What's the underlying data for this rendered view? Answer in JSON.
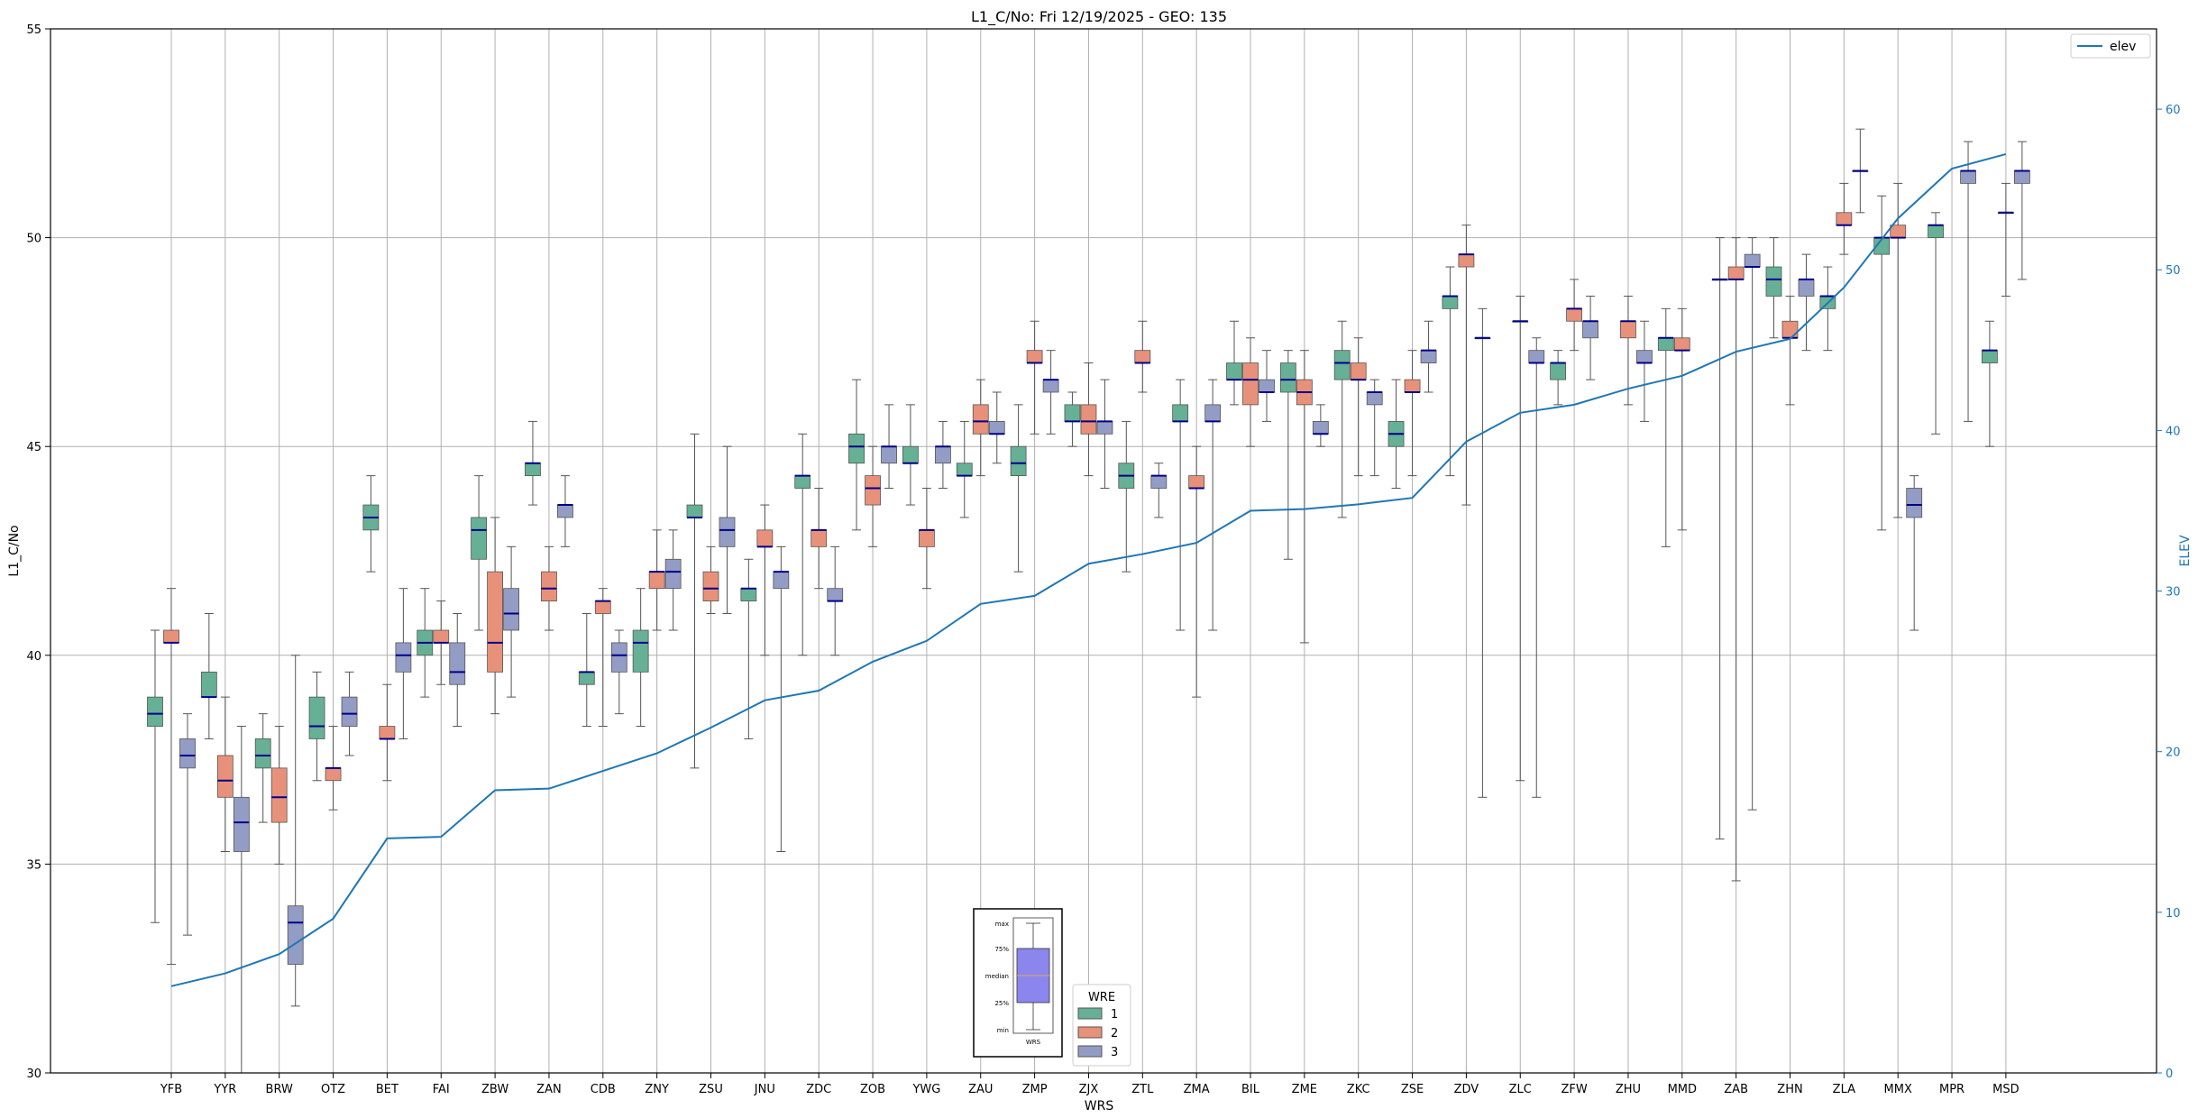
{
  "chart_data": {
    "type": "boxplot",
    "title": "L1_C/No: Fri 12/19/2025 - GEO: 135",
    "xlabel": "WRS",
    "ylabel": "L1_C/No",
    "ylabel_right": "ELEV",
    "ylim": [
      30,
      55
    ],
    "ylim_right": [
      0,
      65
    ],
    "yticks": [
      "30",
      "35",
      "40",
      "45",
      "50",
      "55"
    ],
    "yticks_right": [
      "0",
      "10",
      "20",
      "30",
      "40",
      "50",
      "60"
    ],
    "grid": true,
    "categories": [
      "YFB",
      "YYR",
      "BRW",
      "OTZ",
      "BET",
      "FAI",
      "ZBW",
      "ZAN",
      "CDB",
      "ZNY",
      "ZSU",
      "JNU",
      "ZDC",
      "ZOB",
      "YWG",
      "ZAU",
      "ZMP",
      "ZJX",
      "ZTL",
      "ZMA",
      "BIL",
      "ZME",
      "ZKC",
      "ZSE",
      "ZDV",
      "ZLC",
      "ZFW",
      "ZHU",
      "MMD",
      "ZAB",
      "ZHN",
      "ZLA",
      "MMX",
      "MPR",
      "MSD"
    ],
    "legend": {
      "title": "WRE",
      "entries": [
        {
          "label": "1",
          "color": "#66b096"
        },
        {
          "label": "2",
          "color": "#e8917a"
        },
        {
          "label": "3",
          "color": "#939cc4"
        }
      ]
    },
    "line_legend": {
      "label": "elev",
      "color": "#1f77b4"
    },
    "colors": {
      "wre1": "#66b096",
      "wre2": "#e8917a",
      "wre3": "#939cc4",
      "median": "#00008b",
      "elev": "#1f77b4",
      "grid": "#b0b0b0",
      "whisker": "#555555"
    },
    "key_inset": {
      "labels": [
        "max",
        "75%",
        "median",
        "25%",
        "min"
      ],
      "xlabel": "WRS"
    },
    "elev": [
      5.4,
      6.2,
      7.4,
      9.6,
      14.6,
      14.7,
      17.6,
      17.7,
      18.8,
      19.9,
      21.5,
      23.2,
      23.8,
      25.6,
      26.9,
      29.2,
      29.7,
      31.7,
      32.3,
      33.0,
      35.0,
      35.1,
      35.4,
      35.8,
      39.3,
      41.1,
      41.6,
      42.6,
      43.4,
      44.9,
      45.7,
      48.9,
      53.2,
      56.3,
      57.2
    ],
    "series": [
      {
        "name": "1",
        "boxes": [
          [
            33.6,
            38.3,
            38.6,
            39.0,
            40.6
          ],
          [
            38.0,
            39.0,
            39.0,
            39.6,
            41.0
          ],
          [
            36.0,
            37.3,
            37.6,
            38.0,
            38.6
          ],
          [
            37.0,
            38.0,
            38.3,
            39.0,
            39.6
          ],
          [
            42.0,
            43.0,
            43.3,
            43.6,
            44.3
          ],
          [
            39.0,
            40.0,
            40.3,
            40.6,
            41.6
          ],
          [
            40.6,
            42.3,
            43.0,
            43.3,
            44.3
          ],
          [
            43.6,
            44.3,
            44.6,
            44.6,
            45.6
          ],
          [
            38.3,
            39.3,
            39.6,
            39.6,
            41.0
          ],
          [
            38.3,
            39.6,
            40.3,
            40.6,
            41.6
          ],
          [
            37.3,
            43.3,
            43.3,
            43.6,
            45.3
          ],
          [
            38.0,
            41.3,
            41.6,
            41.6,
            42.3
          ],
          [
            40.0,
            44.0,
            44.3,
            44.3,
            45.3
          ],
          [
            43.0,
            44.6,
            45.0,
            45.3,
            46.6
          ],
          [
            43.6,
            44.6,
            44.6,
            45.0,
            46.0
          ],
          [
            43.3,
            44.3,
            44.3,
            44.6,
            45.6
          ],
          [
            42.0,
            44.3,
            44.6,
            45.0,
            46.0
          ],
          [
            45.0,
            45.6,
            45.6,
            46.0,
            46.3
          ],
          [
            42.0,
            44.0,
            44.3,
            44.6,
            45.6
          ],
          [
            40.6,
            45.6,
            45.6,
            46.0,
            46.6
          ],
          [
            46.0,
            46.6,
            46.6,
            47.0,
            48.0
          ],
          [
            42.3,
            46.3,
            46.6,
            47.0,
            47.3
          ],
          [
            43.3,
            46.6,
            47.0,
            47.3,
            48.0
          ],
          [
            44.0,
            45.0,
            45.3,
            45.6,
            46.6
          ],
          [
            44.3,
            48.3,
            48.6,
            48.6,
            49.3
          ],
          null,
          [
            46.0,
            46.6,
            47.0,
            47.0,
            47.3
          ],
          null,
          [
            42.6,
            47.3,
            47.6,
            47.6,
            48.3
          ],
          [
            35.6,
            49.0,
            49.0,
            49.0,
            50.0
          ],
          [
            47.6,
            48.6,
            49.0,
            49.3,
            50.0
          ],
          [
            47.3,
            48.3,
            48.6,
            48.6,
            49.3
          ],
          [
            43.0,
            49.6,
            50.0,
            50.0,
            51.0
          ],
          [
            45.3,
            50.0,
            50.3,
            50.3,
            50.6
          ],
          [
            45.0,
            47.0,
            47.3,
            47.3,
            48.0
          ]
        ]
      },
      {
        "name": "2",
        "boxes": [
          [
            32.6,
            40.3,
            40.3,
            40.6,
            41.6
          ],
          [
            35.3,
            36.6,
            37.0,
            37.6,
            39.0
          ],
          [
            35.0,
            36.0,
            36.6,
            37.3,
            38.3
          ],
          [
            36.3,
            37.0,
            37.3,
            37.3,
            38.3
          ],
          [
            37.0,
            38.0,
            38.0,
            38.3,
            39.3
          ],
          [
            39.3,
            40.3,
            40.3,
            40.6,
            41.3
          ],
          [
            38.6,
            39.6,
            40.3,
            42.0,
            43.3
          ],
          [
            40.6,
            41.3,
            41.6,
            42.0,
            42.6
          ],
          [
            38.3,
            41.0,
            41.3,
            41.3,
            41.6
          ],
          [
            40.6,
            41.6,
            42.0,
            42.0,
            43.0
          ],
          [
            41.0,
            41.3,
            41.6,
            42.0,
            42.6
          ],
          [
            40.0,
            42.6,
            42.6,
            43.0,
            43.6
          ],
          [
            41.6,
            42.6,
            43.0,
            43.0,
            44.0
          ],
          [
            42.6,
            43.6,
            44.0,
            44.3,
            45.0
          ],
          [
            41.6,
            42.6,
            43.0,
            43.0,
            44.0
          ],
          [
            44.3,
            45.3,
            45.6,
            46.0,
            46.6
          ],
          [
            45.3,
            47.0,
            47.0,
            47.3,
            48.0
          ],
          [
            44.3,
            45.3,
            45.6,
            46.0,
            47.0
          ],
          [
            46.3,
            47.0,
            47.0,
            47.3,
            48.0
          ],
          [
            39.0,
            44.0,
            44.0,
            44.3,
            45.0
          ],
          [
            45.0,
            46.0,
            46.6,
            47.0,
            47.6
          ],
          [
            40.3,
            46.0,
            46.3,
            46.6,
            47.3
          ],
          [
            44.3,
            46.6,
            46.6,
            47.0,
            47.6
          ],
          [
            44.3,
            46.3,
            46.3,
            46.6,
            47.3
          ],
          [
            43.6,
            49.3,
            49.6,
            49.6,
            50.3
          ],
          [
            37.0,
            48.0,
            48.0,
            48.0,
            48.6
          ],
          [
            47.3,
            48.0,
            48.3,
            48.3,
            49.0
          ],
          [
            46.0,
            47.6,
            48.0,
            48.0,
            48.6
          ],
          [
            43.0,
            47.3,
            47.3,
            47.6,
            48.3
          ],
          [
            34.6,
            49.0,
            49.0,
            49.3,
            50.0
          ],
          [
            46.0,
            47.6,
            47.6,
            48.0,
            48.6
          ],
          [
            49.6,
            50.3,
            50.3,
            50.6,
            51.3
          ],
          [
            43.3,
            50.0,
            50.0,
            50.3,
            51.3
          ],
          null,
          [
            48.6,
            50.6,
            50.6,
            50.6,
            51.3
          ]
        ]
      },
      {
        "name": "3",
        "boxes": [
          [
            33.3,
            37.3,
            37.6,
            38.0,
            38.6
          ],
          [
            30.0,
            35.3,
            36.0,
            36.6,
            38.3
          ],
          [
            31.6,
            32.6,
            33.6,
            34.0,
            40.0
          ],
          [
            37.6,
            38.3,
            38.6,
            39.0,
            39.6
          ],
          [
            38.0,
            39.6,
            40.0,
            40.3,
            41.6
          ],
          [
            38.3,
            39.3,
            39.6,
            40.3,
            41.0
          ],
          [
            39.0,
            40.6,
            41.0,
            41.6,
            42.6
          ],
          [
            42.6,
            43.3,
            43.6,
            43.6,
            44.3
          ],
          [
            38.6,
            39.6,
            40.0,
            40.3,
            40.6
          ],
          [
            40.6,
            41.6,
            42.0,
            42.3,
            43.0
          ],
          [
            41.0,
            42.6,
            43.0,
            43.3,
            45.0
          ],
          [
            35.3,
            41.6,
            42.0,
            42.0,
            42.6
          ],
          [
            40.0,
            41.3,
            41.3,
            41.6,
            42.6
          ],
          [
            44.0,
            44.6,
            45.0,
            45.0,
            46.0
          ],
          [
            44.0,
            44.6,
            45.0,
            45.0,
            45.6
          ],
          [
            44.6,
            45.3,
            45.3,
            45.6,
            46.3
          ],
          [
            45.3,
            46.3,
            46.6,
            46.6,
            47.3
          ],
          [
            44.0,
            45.3,
            45.6,
            45.6,
            46.6
          ],
          [
            43.3,
            44.0,
            44.3,
            44.3,
            44.6
          ],
          [
            40.6,
            45.6,
            45.6,
            46.0,
            46.6
          ],
          [
            45.6,
            46.3,
            46.3,
            46.6,
            47.3
          ],
          [
            45.0,
            45.3,
            45.3,
            45.6,
            46.0
          ],
          [
            44.3,
            46.0,
            46.3,
            46.3,
            46.6
          ],
          [
            46.3,
            47.0,
            47.3,
            47.3,
            48.0
          ],
          [
            36.6,
            47.6,
            47.6,
            47.6,
            48.3
          ],
          [
            36.6,
            47.0,
            47.0,
            47.3,
            47.6
          ],
          [
            46.6,
            47.6,
            48.0,
            48.0,
            48.6
          ],
          [
            45.6,
            47.0,
            47.0,
            47.3,
            48.0
          ],
          null,
          [
            36.3,
            49.3,
            49.3,
            49.6,
            50.0
          ],
          [
            47.3,
            48.6,
            49.0,
            49.0,
            49.6
          ],
          [
            50.6,
            51.6,
            51.6,
            51.6,
            52.6
          ],
          [
            40.6,
            43.3,
            43.6,
            44.0,
            44.3
          ],
          [
            45.6,
            51.3,
            51.6,
            51.6,
            52.3
          ],
          [
            49.0,
            51.3,
            51.6,
            51.6,
            52.3
          ]
        ]
      }
    ]
  }
}
